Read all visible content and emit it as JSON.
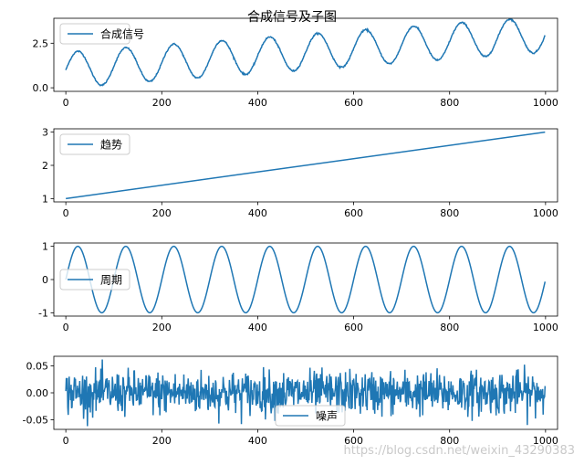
{
  "figure": {
    "suptitle": "合成信号及子图",
    "watermark": "https://blog.csdn.net/weixin_43290383"
  },
  "colors": {
    "line": "#1f77b4",
    "axis": "#000000",
    "legend_border": "#cccccc"
  },
  "chart_data": [
    {
      "type": "line",
      "legend": "合成信号",
      "legend_position": "upper-left",
      "grid": false,
      "xlim": [
        -25,
        1025
      ],
      "ylim": [
        -0.2,
        3.9
      ],
      "xticks": [
        0,
        200,
        400,
        600,
        800,
        1000
      ],
      "xtick_labels": [
        "0",
        "200",
        "400",
        "600",
        "800",
        "1000"
      ],
      "yticks": [
        0.0,
        2.5
      ],
      "ytick_labels": [
        "0.0",
        "2.5"
      ],
      "series": [
        {
          "name": "合成信号",
          "x_start": 0,
          "x_end": 999,
          "formula": "1 + 2*x/999 + sin(2*pi*x/100) + noise(0.02)"
        }
      ]
    },
    {
      "type": "line",
      "legend": "趋势",
      "legend_position": "upper-left",
      "grid": false,
      "xlim": [
        -25,
        1025
      ],
      "ylim": [
        0.9,
        3.1
      ],
      "xticks": [
        0,
        200,
        400,
        600,
        800,
        1000
      ],
      "xtick_labels": [
        "0",
        "200",
        "400",
        "600",
        "800",
        "1000"
      ],
      "yticks": [
        1,
        2,
        3
      ],
      "ytick_labels": [
        "1",
        "2",
        "3"
      ],
      "series": [
        {
          "name": "趋势",
          "x": [
            0,
            999
          ],
          "y": [
            1,
            3
          ]
        }
      ]
    },
    {
      "type": "line",
      "legend": "周期",
      "legend_position": "center-left",
      "grid": false,
      "xlim": [
        -25,
        1025
      ],
      "ylim": [
        -1.1,
        1.1
      ],
      "xticks": [
        0,
        200,
        400,
        600,
        800,
        1000
      ],
      "xtick_labels": [
        "0",
        "200",
        "400",
        "600",
        "800",
        "1000"
      ],
      "yticks": [
        1,
        0,
        -1
      ],
      "ytick_labels": [
        "1",
        "0",
        "-1"
      ],
      "series": [
        {
          "name": "周期",
          "x_start": 0,
          "x_end": 999,
          "period": 100,
          "amplitude": 1
        }
      ]
    },
    {
      "type": "line",
      "legend": "噪声",
      "legend_position": "lower-center",
      "grid": false,
      "xlim": [
        -25,
        1025
      ],
      "ylim": [
        -0.068,
        0.068
      ],
      "xticks": [
        0,
        200,
        400,
        600,
        800,
        1000
      ],
      "xtick_labels": [
        "0",
        "200",
        "400",
        "600",
        "800",
        "1000"
      ],
      "yticks": [
        0.05,
        0.0,
        -0.05
      ],
      "ytick_labels": [
        "0.05",
        "0.00",
        "-0.05"
      ],
      "series": [
        {
          "name": "噪声",
          "x_start": 0,
          "x_end": 999,
          "noise_std": 0.02,
          "noise_range": [
            -0.062,
            0.062
          ]
        }
      ]
    }
  ]
}
